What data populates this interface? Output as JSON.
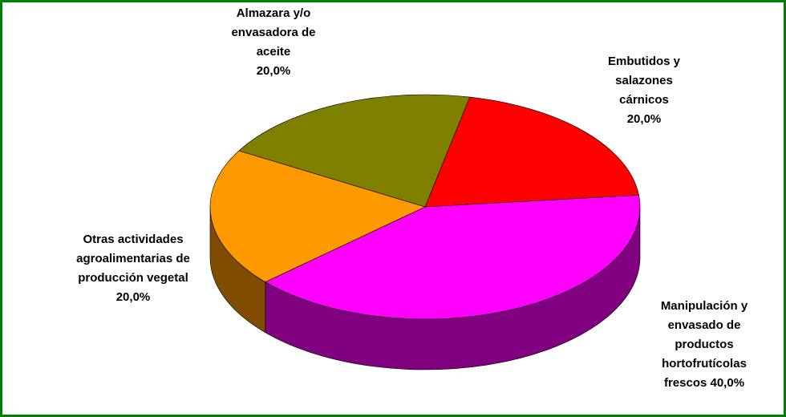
{
  "chart_data": {
    "type": "pie",
    "categories": [
      "Embutidos y salazones cárnicos",
      "Manipulación y envasado de productos hortofrutícolas frescos",
      "Otras actividades agroalimentarias de producción vegetal",
      "Almazara y/o envasadora de aceite"
    ],
    "values": [
      20,
      40,
      20,
      20
    ],
    "value_labels": [
      "20,0%",
      "40,0%",
      "20,0%",
      "20,0%"
    ],
    "colors": [
      "#ff0000",
      "#ff00ff",
      "#ff9900",
      "#808000"
    ]
  }
}
